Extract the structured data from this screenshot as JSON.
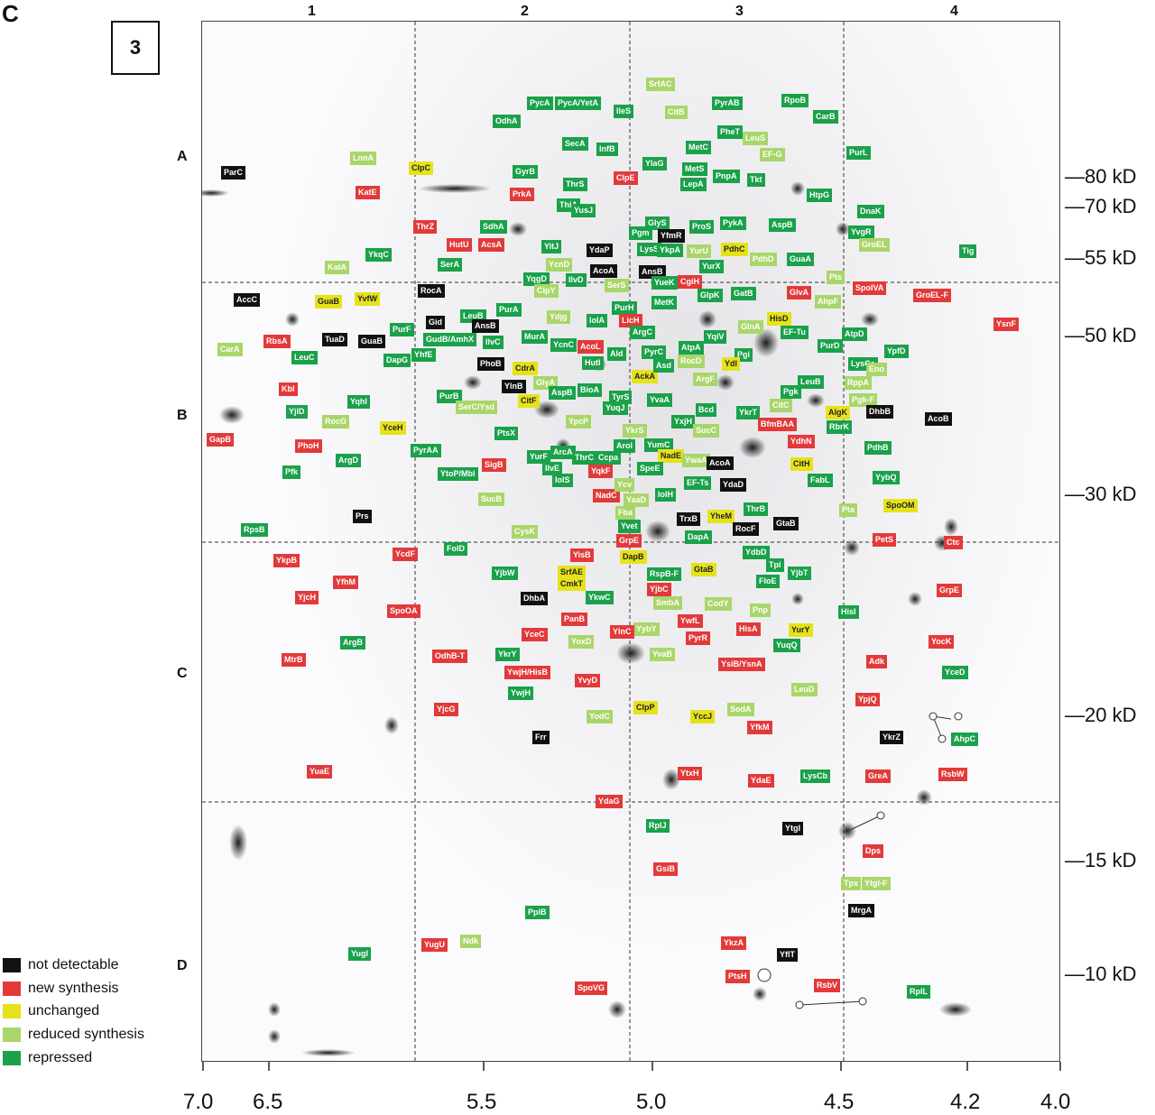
{
  "panel_letter": "C",
  "gel_number": "3",
  "columns": [
    "1",
    "2",
    "3",
    "4"
  ],
  "rows": [
    "A",
    "B",
    "C",
    "D"
  ],
  "mw_markers": [
    "—80 kD",
    "—70 kD",
    "—55 kD",
    "—50 kD",
    "—30 kD",
    "—20 kD",
    "—15 kD",
    "—10 kD"
  ],
  "pi_ticks": [
    "7.0",
    "6.5",
    "5.5",
    "5.0",
    "4.5",
    "4.2",
    "4.0"
  ],
  "legend": [
    {
      "label": "not detectable",
      "color": "#111111"
    },
    {
      "label": "new synthesis",
      "color": "#e23a3a"
    },
    {
      "label": "unchanged",
      "color": "#e6e21a"
    },
    {
      "label": "reduced synthesis",
      "color": "#a9d66a"
    },
    {
      "label": "repressed",
      "color": "#1aa14a"
    }
  ],
  "proteins": {
    "ParC": "ParC",
    "KatE": "KatE",
    "LonA": "LonA",
    "ClpC": "ClpC",
    "ThrZ": "ThrZ",
    "Kata": "KatA",
    "YkqC": "YkqC",
    "AccC": "AccC",
    "GuaB1": "GuaB",
    "YvfW": "YvfW",
    "RocA": "RocA",
    "RbsA": "RbsA",
    "TuaD": "TuaD",
    "GuaB2": "GuaB",
    "Gid": "Gid",
    "CarA": "CarA",
    "LeuC": "LeuC",
    "PurF": "PurF",
    "DapG": "DapG",
    "YhfE": "YhfE",
    "Kbl": "Kbl",
    "GapB": "GapB",
    "YjlD": "YjlD",
    "RocG": "RocG",
    "YqhI": "YqhI",
    "PhoH": "PhoH",
    "ArgD": "ArgD",
    "YceH": "YceH",
    "PurB": "PurB",
    "PyrAA": "PyrAA",
    "Pfk": "Pfk",
    "YtoP": "YtoP/Mbl",
    "SigB": "SigB",
    "Prs": "Prs",
    "RpsB": "RpsB",
    "YkpB": "YkpB",
    "YcdF": "YcdF",
    "YfhM": "YfhM",
    "YjcH": "YjcH",
    "SpoOA": "SpoOA",
    "ArgB": "ArgB",
    "MtrB": "MtrB",
    "FolD": "FolD",
    "YjbW": "YjbW",
    "YisB": "YisB",
    "DhbA": "DhbA",
    "OdhB": "OdhB-T",
    "YceC": "YceC",
    "PanB": "PanB",
    "YwjH": "YwjH/HisB",
    "YkrY": "YkrY",
    "YjcG": "YjcG",
    "YwjH2": "YwjH",
    "YuaE": "YuaE",
    "Frr": "Frr",
    "PycA": "PycA",
    "PycAYetA": "PycA/YetA",
    "IleS": "IleS",
    "OdhA": "OdhA",
    "SrfAC": "SrfAC",
    "PyrAB": "PyrAB",
    "RpoB": "RpoB",
    "CarB": "CarB",
    "CitB": "CitB",
    "PheT": "PheT",
    "LeuS": "LeuS",
    "MetC": "MetC",
    "SecA": "SecA",
    "InfB": "InfB",
    "EFG": "EF-G",
    "PurL": "PurL",
    "GyrB": "GyrB",
    "ThrS": "ThrS",
    "YlaG": "YlaG",
    "MetS": "MetS",
    "PrkA": "PrkA",
    "ClpE": "ClpE",
    "LepA": "LepA",
    "PnpA": "PnpA",
    "Tkt": "Tkt",
    "HtpG": "HtpG",
    "DnaK": "DnaK",
    "SdhA": "SdhA",
    "ThiA": "ThiA",
    "YusJ": "YusJ",
    "GlyS": "GlyS",
    "YfmR": "YfmR",
    "ProS": "ProS",
    "PykA": "PykA",
    "AspB": "AspB",
    "YvgR": "YvgR",
    "HutU": "HutU",
    "AcsA": "AcsA",
    "Pgm": "Pgm",
    "YitJ": "YitJ",
    "YdaP": "YdaP",
    "GroEL": "GroEL",
    "Tig": "Tig",
    "SerA": "SerA",
    "LysS": "LysS",
    "YkpA": "YkpA",
    "YurU": "YurU",
    "PdhC": "PdhC",
    "PdhD": "PdhD",
    "GuaA": "GuaA",
    "IlvD": "IlvD",
    "YcnD": "YcnD",
    "AcoA": "AcoA",
    "AnsB": "AnsB",
    "YurX": "YurX",
    "YqgD": "YqgD",
    "ClpY": "ClpY",
    "SerS": "SerS",
    "YueK": "YueK",
    "CgiH": "CgiH",
    "GlpK": "GlpK",
    "GatB": "GatB",
    "GlvA": "GlvA",
    "SpoIVA": "SpoIVA",
    "GroELF": "GroEL-F",
    "Pts": "Pts",
    "AhpF": "AhpF",
    "MetK": "MetK",
    "LeuB1": "LeuB",
    "PurH": "PurH",
    "PurA": "PurA",
    "YdjG": "Ydjg",
    "LicH": "LicH",
    "GlnA": "GlnA",
    "HisD": "HisD",
    "YsnF": "YsnF",
    "GudB": "GudB/AmhX",
    "AnsB2": "AnsB",
    "IolA": "IolA",
    "YqiV": "YqiV",
    "EFTu": "EF-Tu",
    "AtpD": "AtpD",
    "IlvC": "IlvC",
    "MurA": "MurA",
    "YcnC": "YcnC",
    "AcoL": "AcoL",
    "ArgC": "ArgC",
    "AtpA": "AtpA",
    "Pgi": "Pgi",
    "PurD": "PurD",
    "YpfD": "YpfD",
    "PhoB": "PhoB",
    "Hutl": "HutI",
    "Ald": "Ald",
    "PyrC": "PyrC",
    "AckA": "AckA",
    "RocD": "RocD",
    "Ydl": "Ydl",
    "LysC": "LysCa",
    "Eno": "Eno",
    "CdrA": "CdrA",
    "GlyA": "GlyA",
    "Asd": "Asd",
    "ArgF": "ArgF",
    "RppA": "RppA",
    "YlnB": "YlnB",
    "AspB2": "AspB",
    "BioA": "BioA",
    "TyrS": "TyrS",
    "YvaA": "YvaA",
    "Pgk": "Pgk",
    "LeuB2": "LeuB",
    "PgkF": "Pgk-F",
    "CitF": "CitF",
    "SerC": "SerC/Ysd",
    "YpcP": "YpcP",
    "YuqJ": "YuqJ",
    "YxjH": "YxjH",
    "Bcd": "Bcd",
    "YkrT": "YkrT",
    "CitC": "CitC",
    "AlgK": "AlgK",
    "DhbB": "DhbB",
    "AcoB": "AcoB",
    "RbrK": "RbrK",
    "PtsX": "PtsX",
    "YkrS": "YkrS",
    "BfmBAA": "BfmBAA",
    "YdhN": "YdhN",
    "YurF": "YurF",
    "ArcA": "ArcA",
    "YumC": "YumC",
    "SucC": "SucC",
    "PdhB": "PdhB",
    "IlvE": "IlvE",
    "ThrC": "ThrC",
    "Ccpa": "Ccpa",
    "NadE": "NadE",
    "YwaA": "YwaA",
    "AcoA2": "AcoA",
    "CitH": "CitH",
    "IolS": "IolS",
    "YqkF": "YqkF",
    "Aroi": "AroI",
    "SpeE": "SpeE",
    "FabL": "FabL",
    "YybQ": "YybQ",
    "SucB": "SucB",
    "NadC": "NadC",
    "Ycv": "Ycv",
    "IolH": "IolH",
    "EFTs": "EF-Ts",
    "YdaD": "YdaD",
    "ThrB": "ThrB",
    "Pta": "Pta",
    "SpoOM": "SpoOM",
    "YaaD": "YaaD",
    "Fba": "Fba",
    "Yvet": "Yvet",
    "TrxB": "TrxB",
    "YheM": "YheM",
    "RocF": "RocF",
    "GtaB": "GtaB",
    "CysK": "CysK",
    "GrpE0": "GrpE",
    "DapA": "DapA",
    "PetS": "PetS",
    "Ctc": "Ctc",
    "YdbD": "YdbD",
    "DapB": "DapB",
    "SrfAE": "SrfAE",
    "RspB": "RspB-F",
    "GtaB2": "GtaB",
    "Tpi": "Tpi",
    "YjbT": "YjbT",
    "CmkT": "CmkT",
    "YjbC": "YjbC",
    "FloE": "FloE",
    "GrpE": "GrpE",
    "YkwC": "YkwC",
    "SmbA": "SmbA",
    "CodY": "CodY",
    "Pnp": "Pnp",
    "HisI": "HisI",
    "YwfL": "YwfL",
    "HisA": "HisA",
    "YybY": "YybY",
    "YoxD": "YoxD",
    "YlnC": "YlnC",
    "PyrR": "PyrR",
    "YuqQ": "YuqQ",
    "YurY": "YurY",
    "Adk": "Adk",
    "YocK": "YocK",
    "YvaB": "YvaB",
    "YsiB": "YsiB/YsnA",
    "YceD": "YceD",
    "YvyD": "YvyD",
    "LeuD": "LeuD",
    "YpjQ": "YpjQ",
    "YodC": "YodC",
    "ClpP": "ClpP",
    "YccJ": "YccJ",
    "SodA": "SodA",
    "YfkM": "YfkM",
    "YkrZ": "YkrZ",
    "AhpC": "AhpC",
    "YtxH": "YtxH",
    "YdaE": "YdaE",
    "LysCb": "LysCb",
    "GreA": "GreA",
    "RsbW": "RsbW",
    "YdaG": "YdaG",
    "RplJ": "RplJ",
    "YtgI": "YtgI",
    "Dps": "Dps",
    "GsiB": "GsiB",
    "Tpx": "Tpx",
    "YtgIF": "YtgI-F",
    "PpiB": "PpiB",
    "MrgA": "MrgA",
    "YugI": "YugI",
    "YugU": "YugU",
    "Ndk": "Ndk",
    "YkzA": "YkzA",
    "YflT": "YflT",
    "PtsH": "PtsH",
    "RsbV": "RsbV",
    "SpoVG": "SpoVG",
    "RplL": "RplL"
  }
}
